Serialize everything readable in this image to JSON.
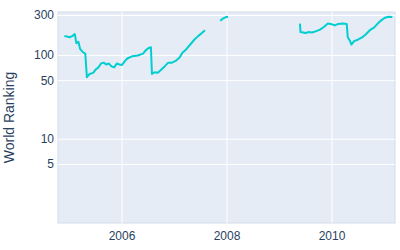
{
  "chart_data": {
    "type": "line",
    "y_label": "World Ranking",
    "color": "#00ced1",
    "log": "y",
    "grid": true,
    "x": [
      2004.9,
      2004.95,
      2005.0,
      2005.05,
      2005.1,
      2005.13,
      2005.17,
      2005.2,
      2005.25,
      2005.3,
      2005.33,
      2005.38,
      2005.45,
      2005.5,
      2005.55,
      2005.6,
      2005.65,
      2005.7,
      2005.75,
      2005.8,
      2005.85,
      2005.9,
      2005.95,
      2006.0,
      2006.05,
      2006.1,
      2006.2,
      2006.3,
      2006.4,
      2006.45,
      2006.5,
      2006.55,
      2006.57,
      2006.62,
      2006.68,
      2006.75,
      2006.82,
      2006.88,
      2006.95,
      2007.02,
      2007.1,
      2007.15,
      2007.22,
      2007.3,
      2007.38,
      2007.45,
      2007.52,
      2007.58,
      2007.72,
      2007.87,
      2007.92,
      2007.97,
      2008.02,
      2008.7,
      2009.39,
      2009.4,
      2009.45,
      2009.5,
      2009.55,
      2009.62,
      2009.7,
      2009.78,
      2009.85,
      2009.92,
      2010.0,
      2010.05,
      2010.12,
      2010.2,
      2010.28,
      2010.3,
      2010.34,
      2010.37,
      2010.42,
      2010.5,
      2010.58,
      2010.65,
      2010.72,
      2010.8,
      2010.87,
      2010.93,
      2011.0,
      2011.07,
      2011.15
    ],
    "values": [
      170,
      168,
      165,
      170,
      180,
      140,
      145,
      120,
      110,
      105,
      55,
      60,
      62,
      68,
      72,
      80,
      82,
      78,
      80,
      74,
      72,
      80,
      78,
      77,
      85,
      92,
      98,
      100,
      105,
      115,
      122,
      125,
      60,
      63,
      62,
      68,
      75,
      82,
      82,
      86,
      95,
      108,
      118,
      135,
      155,
      170,
      185,
      200,
      null,
      260,
      275,
      285,
      290,
      null,
      240,
      190,
      188,
      185,
      190,
      188,
      195,
      205,
      220,
      240,
      235,
      228,
      238,
      240,
      238,
      165,
      150,
      135,
      148,
      155,
      165,
      180,
      200,
      215,
      240,
      260,
      280,
      290,
      288
    ],
    "xlim": [
      2004.78,
      2011.2
    ],
    "xticks": [
      2006,
      2008,
      2010
    ],
    "ylim": [
      1,
      330
    ],
    "yticks": [
      5,
      10,
      50,
      100,
      300
    ]
  }
}
